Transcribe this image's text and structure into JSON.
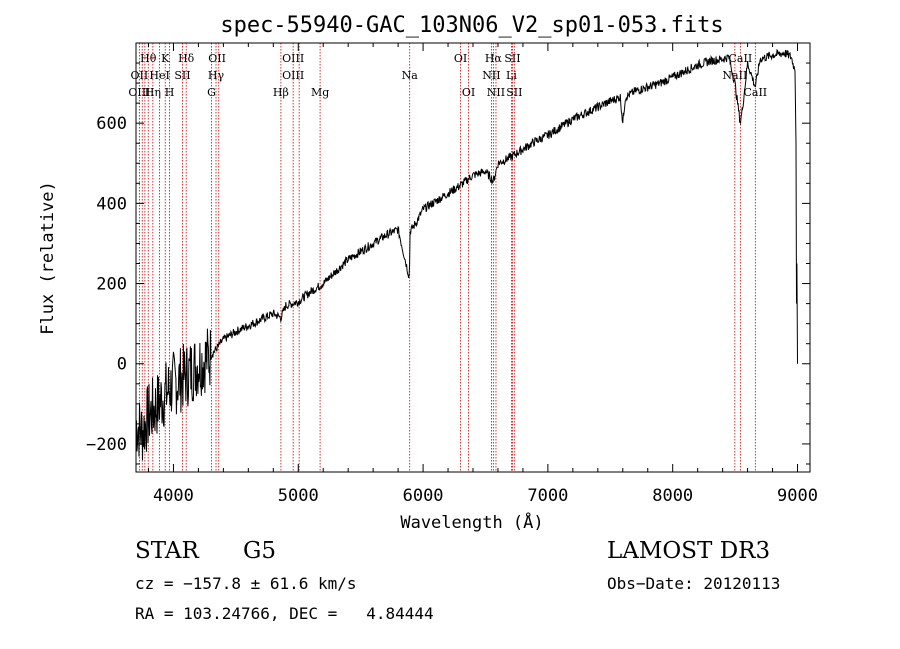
{
  "chart_data": {
    "type": "line",
    "title": "spec-55940-GAC_103N06_V2_sp01-053.fits",
    "xlabel": "Wavelength (Å)",
    "ylabel": "Flux (relative)",
    "xlim": [
      3700,
      9100
    ],
    "ylim": [
      -270,
      800
    ],
    "xticks": [
      4000,
      5000,
      6000,
      7000,
      8000,
      9000
    ],
    "yticks": [
      -200,
      0,
      200,
      400,
      600
    ],
    "series": [
      {
        "name": "flux",
        "x": [
          3700,
          3750,
          3800,
          3850,
          3900,
          3950,
          4000,
          4050,
          4100,
          4150,
          4200,
          4250,
          4300,
          4350,
          4400,
          4500,
          4600,
          4700,
          4800,
          4861,
          4900,
          5000,
          5100,
          5200,
          5300,
          5400,
          5500,
          5600,
          5700,
          5800,
          5890,
          5896,
          5950,
          6000,
          6100,
          6200,
          6300,
          6400,
          6500,
          6563,
          6600,
          6700,
          6800,
          6900,
          7000,
          7100,
          7200,
          7300,
          7400,
          7500,
          7580,
          7600,
          7620,
          7700,
          7800,
          7900,
          8000,
          8100,
          8200,
          8300,
          8400,
          8450,
          8498,
          8542,
          8560,
          8600,
          8662,
          8700,
          8800,
          8900,
          8950,
          8980,
          9000
        ],
        "y": [
          -150,
          -170,
          -130,
          -110,
          -90,
          -70,
          -50,
          -40,
          -30,
          -15,
          0,
          10,
          20,
          40,
          60,
          80,
          95,
          110,
          125,
          115,
          145,
          155,
          180,
          200,
          230,
          260,
          280,
          300,
          320,
          335,
          215,
          330,
          355,
          385,
          405,
          425,
          445,
          470,
          480,
          455,
          500,
          515,
          535,
          555,
          570,
          590,
          610,
          625,
          640,
          655,
          665,
          600,
          665,
          680,
          690,
          700,
          715,
          730,
          745,
          755,
          760,
          765,
          700,
          600,
          640,
          750,
          690,
          760,
          770,
          775,
          765,
          730,
          0
        ]
      }
    ],
    "noise_until": 4300,
    "line_labels": {
      "row1": [
        {
          "text": "Hθ",
          "x": 3798
        },
        {
          "text": "K",
          "x": 3934
        },
        {
          "text": "Hδ",
          "x": 4102
        },
        {
          "text": "OII",
          "x": 4350
        },
        {
          "text": "OIII",
          "x": 4959
        },
        {
          "text": "OI",
          "x": 6300
        },
        {
          "text": "Hα",
          "x": 6563
        },
        {
          "text": "SII",
          "x": 6716
        },
        {
          "text": "CaII",
          "x": 8542
        }
      ],
      "row2": [
        {
          "text": "OII",
          "x": 3727
        },
        {
          "text": "HeI",
          "x": 3889
        },
        {
          "text": "SII",
          "x": 4072
        },
        {
          "text": "Hγ",
          "x": 4341
        },
        {
          "text": "OIII",
          "x": 4959
        },
        {
          "text": "Na",
          "x": 5893
        },
        {
          "text": "NII",
          "x": 6548
        },
        {
          "text": "Li",
          "x": 6708
        },
        {
          "text": "NaII",
          "x": 8498
        }
      ],
      "row3": [
        {
          "text": "OIII",
          "x": 3727
        },
        {
          "text": "Hη",
          "x": 3835
        },
        {
          "text": "H",
          "x": 3969
        },
        {
          "text": "G",
          "x": 4305
        },
        {
          "text": "Hβ",
          "x": 4861
        },
        {
          "text": "Mg",
          "x": 5175
        },
        {
          "text": "OI",
          "x": 6364
        },
        {
          "text": "NII",
          "x": 6584
        },
        {
          "text": "SII",
          "x": 6731
        },
        {
          "text": "CaII",
          "x": 8662
        }
      ]
    },
    "marker_lines": [
      3727,
      3750,
      3771,
      3798,
      3835,
      3889,
      3934,
      3969,
      4072,
      4102,
      4305,
      4341,
      4363,
      4861,
      4959,
      5007,
      5175,
      5893,
      6300,
      6364,
      6548,
      6563,
      6584,
      6708,
      6716,
      6731,
      8498,
      8542,
      8662
    ],
    "colors": {
      "spectrum": "#000000",
      "marker": "#cc0000",
      "axes": "#000000"
    }
  },
  "info": {
    "object_class": "STAR",
    "subclass": "G5",
    "survey": "LAMOST DR3",
    "cz": "cz = −157.8 ± 61.6 km/s",
    "obs_date": "Obs−Date: 20120113",
    "coords": "RA = 103.24766, DEC =   4.84444"
  }
}
